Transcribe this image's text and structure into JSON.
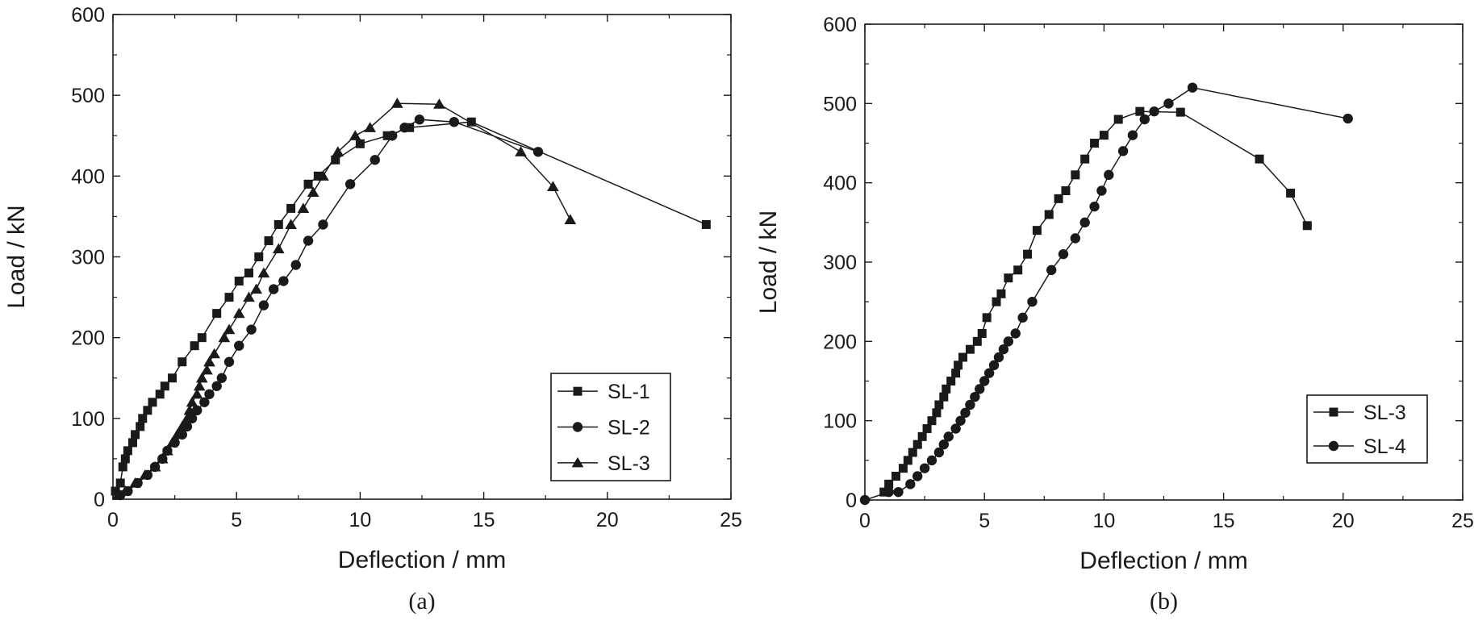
{
  "chart_data": [
    {
      "panel": "(a)",
      "type": "line",
      "xlabel": "Deflection / mm",
      "ylabel": "Load / kN",
      "xlim": [
        0,
        25
      ],
      "ylim": [
        0,
        600
      ],
      "xticks": [
        0,
        5,
        10,
        15,
        20,
        25
      ],
      "yticks": [
        0,
        100,
        200,
        300,
        400,
        500,
        600
      ],
      "xtick_labels": [
        "0",
        "5",
        "10",
        "15",
        "20",
        "25"
      ],
      "ytick_labels": [
        "0",
        "100",
        "200",
        "300",
        "400",
        "500",
        "600"
      ],
      "grid": false,
      "legend_position": "bottom-right",
      "series": [
        {
          "name": "SL-1",
          "marker": "square",
          "points": [
            [
              0.1,
              10
            ],
            [
              0.3,
              20
            ],
            [
              0.4,
              40
            ],
            [
              0.5,
              50
            ],
            [
              0.6,
              60
            ],
            [
              0.8,
              70
            ],
            [
              0.9,
              80
            ],
            [
              1.1,
              90
            ],
            [
              1.2,
              100
            ],
            [
              1.4,
              110
            ],
            [
              1.6,
              120
            ],
            [
              1.9,
              130
            ],
            [
              2.1,
              140
            ],
            [
              2.4,
              150
            ],
            [
              2.8,
              170
            ],
            [
              3.3,
              190
            ],
            [
              3.6,
              200
            ],
            [
              4.2,
              230
            ],
            [
              4.7,
              250
            ],
            [
              5.1,
              270
            ],
            [
              5.5,
              280
            ],
            [
              5.9,
              300
            ],
            [
              6.3,
              320
            ],
            [
              6.7,
              340
            ],
            [
              7.2,
              360
            ],
            [
              7.9,
              390
            ],
            [
              8.3,
              400
            ],
            [
              9.0,
              420
            ],
            [
              10.0,
              440
            ],
            [
              11.1,
              450
            ],
            [
              12.0,
              460
            ],
            [
              14.5,
              467
            ],
            [
              24.0,
              340
            ]
          ]
        },
        {
          "name": "SL-2",
          "marker": "circle",
          "points": [
            [
              0.3,
              5
            ],
            [
              0.6,
              10
            ],
            [
              1.0,
              20
            ],
            [
              1.4,
              30
            ],
            [
              1.7,
              40
            ],
            [
              2.0,
              50
            ],
            [
              2.2,
              60
            ],
            [
              2.5,
              70
            ],
            [
              2.8,
              80
            ],
            [
              3.0,
              90
            ],
            [
              3.2,
              100
            ],
            [
              3.4,
              110
            ],
            [
              3.7,
              120
            ],
            [
              3.9,
              130
            ],
            [
              4.2,
              140
            ],
            [
              4.4,
              150
            ],
            [
              4.7,
              170
            ],
            [
              5.1,
              190
            ],
            [
              5.6,
              210
            ],
            [
              6.1,
              240
            ],
            [
              6.5,
              260
            ],
            [
              6.9,
              270
            ],
            [
              7.4,
              290
            ],
            [
              7.9,
              320
            ],
            [
              8.5,
              340
            ],
            [
              9.6,
              390
            ],
            [
              10.6,
              420
            ],
            [
              11.3,
              450
            ],
            [
              11.8,
              460
            ],
            [
              12.4,
              470
            ],
            [
              13.8,
              467
            ],
            [
              17.2,
              430
            ]
          ]
        },
        {
          "name": "SL-3",
          "marker": "triangle",
          "points": [
            [
              0.2,
              5
            ],
            [
              0.5,
              10
            ],
            [
              0.9,
              20
            ],
            [
              1.3,
              30
            ],
            [
              1.7,
              40
            ],
            [
              2.0,
              50
            ],
            [
              2.2,
              60
            ],
            [
              2.4,
              70
            ],
            [
              2.6,
              80
            ],
            [
              2.8,
              90
            ],
            [
              3.0,
              100
            ],
            [
              3.1,
              110
            ],
            [
              3.2,
              120
            ],
            [
              3.4,
              130
            ],
            [
              3.5,
              140
            ],
            [
              3.6,
              150
            ],
            [
              3.8,
              160
            ],
            [
              3.9,
              170
            ],
            [
              4.1,
              180
            ],
            [
              4.5,
              200
            ],
            [
              4.7,
              210
            ],
            [
              5.1,
              230
            ],
            [
              5.5,
              250
            ],
            [
              5.8,
              260
            ],
            [
              6.1,
              280
            ],
            [
              6.7,
              310
            ],
            [
              7.2,
              340
            ],
            [
              7.7,
              360
            ],
            [
              8.1,
              380
            ],
            [
              8.5,
              400
            ],
            [
              9.1,
              430
            ],
            [
              9.8,
              450
            ],
            [
              10.4,
              460
            ],
            [
              11.5,
              490
            ],
            [
              13.2,
              489
            ],
            [
              16.5,
              430
            ],
            [
              17.8,
              387
            ],
            [
              18.5,
              346
            ]
          ]
        }
      ]
    },
    {
      "panel": "(b)",
      "type": "line",
      "xlabel": "Deflection / mm",
      "ylabel": "Load / kN",
      "xlim": [
        0,
        25
      ],
      "ylim": [
        0,
        600
      ],
      "xticks": [
        0,
        5,
        10,
        15,
        20,
        25
      ],
      "yticks": [
        0,
        100,
        200,
        300,
        400,
        500,
        600
      ],
      "xtick_labels": [
        "0",
        "5",
        "10",
        "15",
        "20",
        "25"
      ],
      "ytick_labels": [
        "0",
        "100",
        "200",
        "300",
        "400",
        "500",
        "600"
      ],
      "grid": false,
      "legend_position": "bottom-right",
      "series": [
        {
          "name": "SL-3",
          "marker": "square",
          "points": [
            [
              0.8,
              10
            ],
            [
              1.0,
              20
            ],
            [
              1.3,
              30
            ],
            [
              1.6,
              40
            ],
            [
              1.8,
              50
            ],
            [
              2.0,
              60
            ],
            [
              2.2,
              70
            ],
            [
              2.4,
              80
            ],
            [
              2.6,
              90
            ],
            [
              2.8,
              100
            ],
            [
              3.0,
              110
            ],
            [
              3.1,
              120
            ],
            [
              3.3,
              130
            ],
            [
              3.4,
              140
            ],
            [
              3.6,
              150
            ],
            [
              3.8,
              160
            ],
            [
              3.9,
              170
            ],
            [
              4.1,
              180
            ],
            [
              4.4,
              190
            ],
            [
              4.7,
              200
            ],
            [
              4.9,
              210
            ],
            [
              5.1,
              230
            ],
            [
              5.5,
              250
            ],
            [
              5.7,
              260
            ],
            [
              6.0,
              280
            ],
            [
              6.4,
              290
            ],
            [
              6.8,
              310
            ],
            [
              7.2,
              340
            ],
            [
              7.7,
              360
            ],
            [
              8.1,
              380
            ],
            [
              8.4,
              390
            ],
            [
              8.8,
              410
            ],
            [
              9.2,
              430
            ],
            [
              9.6,
              450
            ],
            [
              10.0,
              460
            ],
            [
              10.6,
              480
            ],
            [
              11.5,
              490
            ],
            [
              13.2,
              489
            ],
            [
              16.5,
              430
            ],
            [
              17.8,
              387
            ],
            [
              18.5,
              346
            ]
          ]
        },
        {
          "name": "SL-4",
          "marker": "circle",
          "points": [
            [
              0,
              0
            ],
            [
              1.0,
              10
            ],
            [
              1.4,
              10
            ],
            [
              1.9,
              20
            ],
            [
              2.2,
              30
            ],
            [
              2.5,
              40
            ],
            [
              2.8,
              50
            ],
            [
              3.1,
              60
            ],
            [
              3.3,
              70
            ],
            [
              3.5,
              80
            ],
            [
              3.8,
              90
            ],
            [
              4.0,
              100
            ],
            [
              4.2,
              110
            ],
            [
              4.4,
              120
            ],
            [
              4.6,
              130
            ],
            [
              4.8,
              140
            ],
            [
              5.0,
              150
            ],
            [
              5.2,
              160
            ],
            [
              5.4,
              170
            ],
            [
              5.6,
              180
            ],
            [
              5.8,
              190
            ],
            [
              6.0,
              200
            ],
            [
              6.3,
              210
            ],
            [
              6.6,
              230
            ],
            [
              7.0,
              250
            ],
            [
              7.8,
              290
            ],
            [
              8.3,
              310
            ],
            [
              8.8,
              330
            ],
            [
              9.2,
              350
            ],
            [
              9.6,
              370
            ],
            [
              9.9,
              390
            ],
            [
              10.2,
              410
            ],
            [
              10.8,
              440
            ],
            [
              11.2,
              460
            ],
            [
              11.7,
              480
            ],
            [
              12.1,
              490
            ],
            [
              12.7,
              500
            ],
            [
              13.7,
              520
            ],
            [
              20.2,
              481
            ]
          ]
        }
      ]
    }
  ]
}
